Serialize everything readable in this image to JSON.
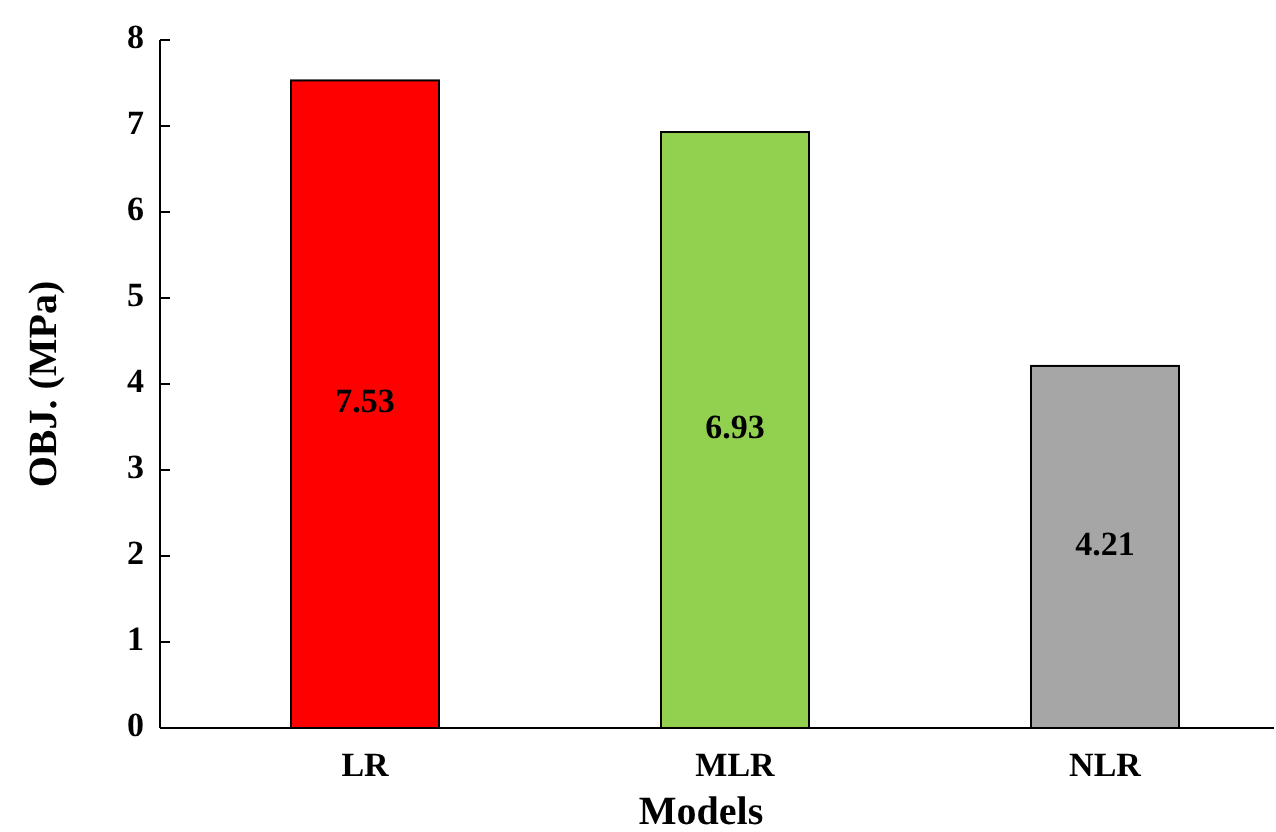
{
  "chart_data": {
    "type": "bar",
    "xlabel": "Models",
    "ylabel": "OBJ. (MPa)",
    "categories": [
      "LR",
      "MLR",
      "NLR"
    ],
    "values": [
      7.53,
      6.93,
      4.21
    ],
    "colors": [
      "#ff0000",
      "#92d050",
      "#a6a6a6"
    ],
    "ylim": [
      0,
      8
    ],
    "yticks": [
      0,
      1,
      2,
      3,
      4,
      5,
      6,
      7,
      8
    ],
    "data_labels": true,
    "grid": false
  }
}
